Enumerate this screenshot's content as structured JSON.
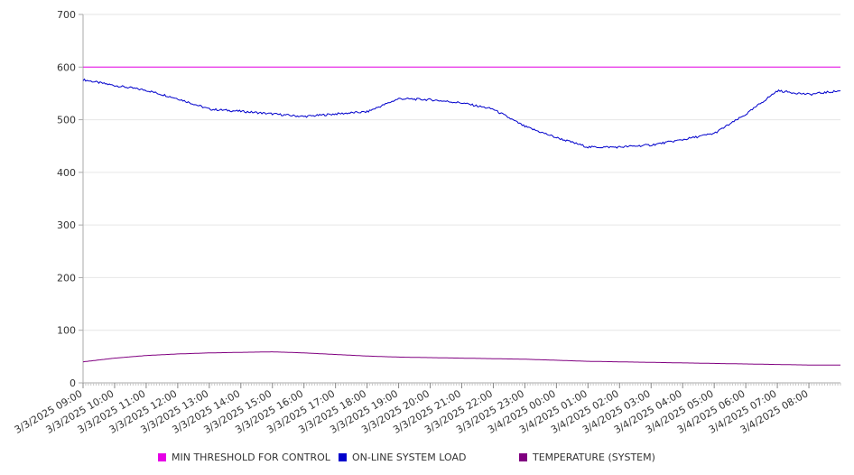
{
  "chart_data": {
    "type": "line",
    "ylim": [
      0,
      700
    ],
    "y_ticks": [
      0,
      100,
      200,
      300,
      400,
      500,
      600,
      700
    ],
    "x_tick_labels": [
      "3/3/2025 09:00",
      "3/3/2025 10:00",
      "3/3/2025 11:00",
      "3/3/2025 12:00",
      "3/3/2025 13:00",
      "3/3/2025 14:00",
      "3/3/2025 15:00",
      "3/3/2025 16:00",
      "3/3/2025 17:00",
      "3/3/2025 18:00",
      "3/3/2025 19:00",
      "3/3/2025 20:00",
      "3/3/2025 21:00",
      "3/3/2025 22:00",
      "3/3/2025 23:00",
      "3/4/2025 00:00",
      "3/4/2025 01:00",
      "3/4/2025 02:00",
      "3/4/2025 03:00",
      "3/4/2025 04:00",
      "3/4/2025 05:00",
      "3/4/2025 06:00",
      "3/4/2025 07:00",
      "3/4/2025 08:00"
    ],
    "x": [
      "3/3/2025 09:00",
      "3/3/2025 10:00",
      "3/3/2025 11:00",
      "3/3/2025 12:00",
      "3/3/2025 13:00",
      "3/3/2025 14:00",
      "3/3/2025 15:00",
      "3/3/2025 16:00",
      "3/3/2025 17:00",
      "3/3/2025 18:00",
      "3/3/2025 19:00",
      "3/3/2025 20:00",
      "3/3/2025 21:00",
      "3/3/2025 22:00",
      "3/3/2025 23:00",
      "3/4/2025 00:00",
      "3/4/2025 01:00",
      "3/4/2025 02:00",
      "3/4/2025 03:00",
      "3/4/2025 04:00",
      "3/4/2025 05:00",
      "3/4/2025 06:00",
      "3/4/2025 07:00",
      "3/4/2025 08:00",
      "3/4/2025 09:00"
    ],
    "series": [
      {
        "name": "MIN THRESHOLD FOR CONTROL",
        "color": "#e600e6",
        "values": [
          600,
          600,
          600,
          600,
          600,
          600,
          600,
          600,
          600,
          600,
          600,
          600,
          600,
          600,
          600,
          600,
          600,
          600,
          600,
          600,
          600,
          600,
          600,
          600,
          600
        ]
      },
      {
        "name": "ON-LINE SYSTEM LOAD",
        "color": "#0000cc",
        "values": [
          576,
          565,
          556,
          540,
          520,
          516,
          511,
          506,
          511,
          515,
          540,
          538,
          532,
          520,
          487,
          466,
          448,
          448,
          452,
          462,
          474,
          510,
          555,
          548,
          555
        ]
      },
      {
        "name": "TEMPERATURE (SYSTEM)",
        "color": "#800080",
        "values": [
          40,
          47,
          52,
          55,
          57,
          58,
          59,
          57,
          54,
          51,
          49,
          48,
          47,
          46,
          45,
          43,
          41,
          40,
          39,
          38,
          37,
          36,
          35,
          34,
          34
        ]
      }
    ],
    "grid": true,
    "legend_position": "bottom"
  }
}
